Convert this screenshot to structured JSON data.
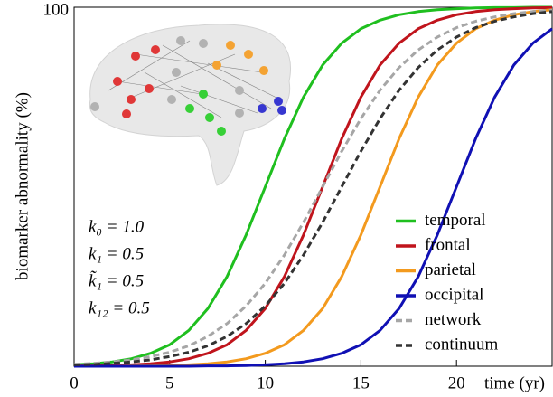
{
  "chart_data": {
    "type": "line",
    "x_label": "time (yr)",
    "y_label": "biomarker abnormality (%)",
    "x": [
      0,
      1,
      2,
      3,
      4,
      5,
      6,
      7,
      8,
      9,
      10,
      11,
      12,
      13,
      14,
      15,
      16,
      17,
      18,
      19,
      20,
      21,
      22,
      23,
      24,
      25
    ],
    "xlim": [
      0,
      25
    ],
    "xticks": [
      0,
      5,
      10,
      15,
      20
    ],
    "ylim": [
      0,
      100
    ],
    "yticks": [
      100
    ],
    "legend": "lower right",
    "annotations": [
      "k₀ = 1.0",
      "k₁ = 0.5",
      "k̃₁ = 0.5",
      "k₁₂ = 0.5"
    ],
    "series": [
      {
        "name": "temporal",
        "color": "#1fbf1f",
        "dashed": false,
        "values": [
          0.4,
          0.7,
          1.2,
          2.1,
          3.6,
          6.0,
          10.0,
          16.1,
          25.0,
          36.6,
          50,
          63.4,
          75.0,
          83.9,
          90.0,
          94.0,
          96.4,
          97.9,
          98.8,
          99.3,
          99.6,
          99.8,
          99.9,
          99.9,
          100,
          100
        ]
      },
      {
        "name": "frontal",
        "color": "#c0141c",
        "dashed": false,
        "values": [
          0.1,
          0.1,
          0.2,
          0.4,
          0.7,
          1.2,
          2.1,
          3.6,
          6.0,
          10.0,
          16.1,
          25.0,
          36.6,
          50,
          63.4,
          75.0,
          83.9,
          90.0,
          94.0,
          96.4,
          97.9,
          98.8,
          99.3,
          99.6,
          99.8,
          99.9
        ]
      },
      {
        "name": "parietal",
        "color": "#f39a1e",
        "dashed": false,
        "values": [
          0,
          0,
          0,
          0.1,
          0.1,
          0.2,
          0.4,
          0.7,
          1.2,
          2.1,
          3.6,
          6.0,
          10.0,
          16.1,
          25.0,
          36.6,
          50,
          63.4,
          75.0,
          83.9,
          90.0,
          94.0,
          96.4,
          97.9,
          98.8,
          99.3
        ]
      },
      {
        "name": "occipital",
        "color": "#1010b4",
        "dashed": false,
        "values": [
          0,
          0,
          0,
          0,
          0,
          0,
          0,
          0.1,
          0.1,
          0.2,
          0.4,
          0.7,
          1.2,
          2.1,
          3.6,
          6.0,
          10.0,
          16.1,
          25.0,
          36.6,
          50,
          63.4,
          75.0,
          83.9,
          90.0,
          94.0
        ]
      },
      {
        "name": "network",
        "color": "#a6a6a6",
        "dashed": true,
        "values": [
          0.5,
          0.8,
          1.2,
          1.8,
          2.7,
          3.9,
          5.7,
          8.3,
          11.9,
          16.8,
          23.1,
          31.0,
          40.1,
          50,
          59.9,
          69.0,
          76.9,
          83.2,
          88.1,
          91.7,
          94.3,
          96.1,
          97.3,
          98.2,
          98.8,
          99.2
        ]
      },
      {
        "name": "continuum",
        "color": "#333333",
        "dashed": true,
        "values": [
          0.4,
          0.5,
          0.8,
          1.2,
          1.8,
          2.7,
          3.9,
          5.7,
          8.3,
          11.9,
          16.8,
          23.1,
          31.0,
          40.1,
          50,
          59.9,
          69.0,
          76.9,
          83.2,
          88.1,
          91.7,
          94.3,
          96.1,
          97.3,
          98.2,
          98.8
        ]
      }
    ]
  }
}
